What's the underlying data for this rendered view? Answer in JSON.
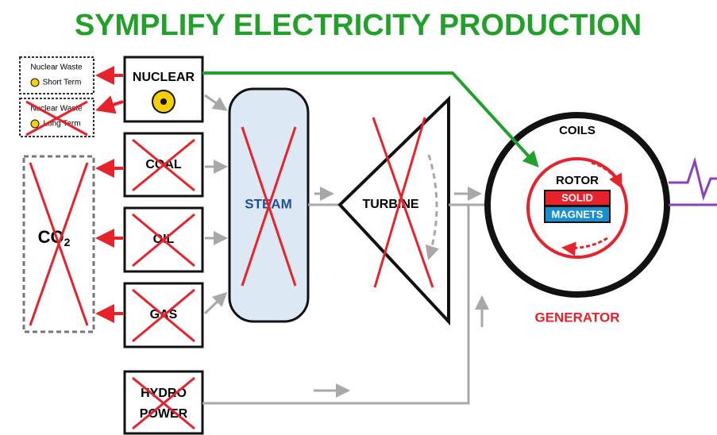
{
  "title": "SYMPLIFY ELECTRICITY PRODUCTION",
  "waste": [
    {
      "title": "Nuclear Waste",
      "term": "Short Term"
    },
    {
      "title": "Nuclear Waste",
      "term": "Long Term"
    }
  ],
  "sources": {
    "nuclear": "NUCLEAR",
    "coal": "COAL",
    "oil": "OIL",
    "gas": "GAS",
    "hydro": [
      "HYDRO",
      "POWER"
    ]
  },
  "co2": {
    "main": "CO",
    "sub": "2"
  },
  "steam": "STEAM",
  "turbine": "TURBINE",
  "generator": {
    "coils": "COILS",
    "rotor": "ROTOR",
    "solid": "SOLID",
    "magnets": "MAGNETS",
    "label": "GENERATOR"
  }
}
